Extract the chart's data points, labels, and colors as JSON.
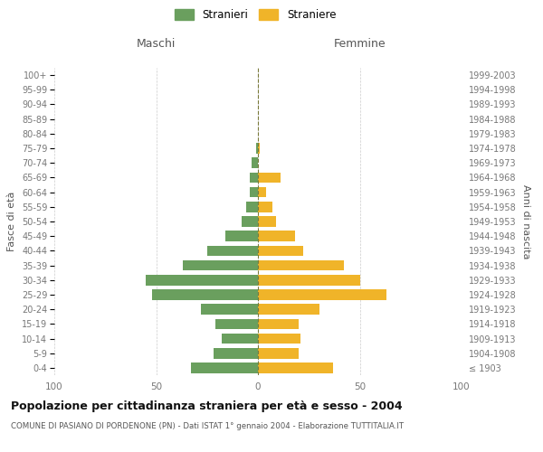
{
  "age_groups": [
    "100+",
    "95-99",
    "90-94",
    "85-89",
    "80-84",
    "75-79",
    "70-74",
    "65-69",
    "60-64",
    "55-59",
    "50-54",
    "45-49",
    "40-44",
    "35-39",
    "30-34",
    "25-29",
    "20-24",
    "15-19",
    "10-14",
    "5-9",
    "0-4"
  ],
  "birth_years": [
    "≤ 1903",
    "1904-1908",
    "1909-1913",
    "1914-1918",
    "1919-1923",
    "1924-1928",
    "1929-1933",
    "1934-1938",
    "1939-1943",
    "1944-1948",
    "1949-1953",
    "1954-1958",
    "1959-1963",
    "1964-1968",
    "1969-1973",
    "1974-1978",
    "1979-1983",
    "1984-1988",
    "1989-1993",
    "1994-1998",
    "1999-2003"
  ],
  "males": [
    0,
    0,
    0,
    0,
    0,
    1,
    3,
    4,
    4,
    6,
    8,
    16,
    25,
    37,
    55,
    52,
    28,
    21,
    18,
    22,
    33
  ],
  "females": [
    0,
    0,
    0,
    0,
    0,
    1,
    0,
    11,
    4,
    7,
    9,
    18,
    22,
    42,
    50,
    63,
    30,
    20,
    21,
    20,
    37
  ],
  "male_color": "#6a9f5e",
  "female_color": "#f0b429",
  "dashed_line_color": "#7a7a3a",
  "background_color": "#ffffff",
  "grid_color": "#cccccc",
  "title": "Popolazione per cittadinanza straniera per età e sesso - 2004",
  "subtitle": "COMUNE DI PASIANO DI PORDENONE (PN) - Dati ISTAT 1° gennaio 2004 - Elaborazione TUTTITALIA.IT",
  "xlabel_left": "Maschi",
  "xlabel_right": "Femmine",
  "ylabel_left": "Fasce di età",
  "ylabel_right": "Anni di nascita",
  "legend_male": "Stranieri",
  "legend_female": "Straniere",
  "xlim": 100,
  "tick_label_color": "#777777",
  "axis_label_color": "#555555",
  "title_color": "#111111",
  "subtitle_color": "#555555"
}
